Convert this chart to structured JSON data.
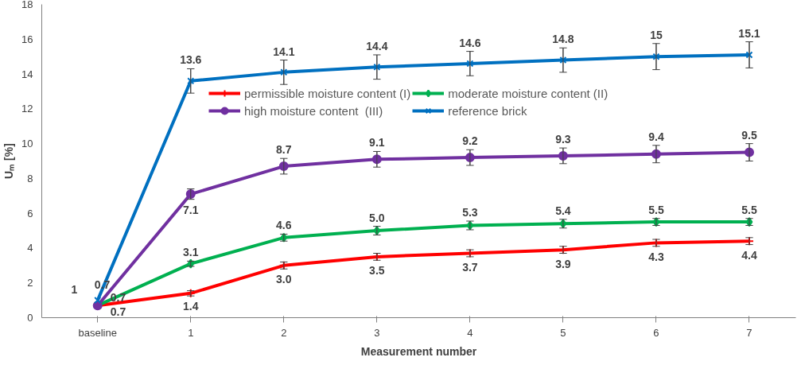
{
  "chart_data": {
    "type": "line",
    "xlabel": "Measurement number",
    "ylabel": "Uₘ [%]",
    "categories": [
      "baseline",
      "1",
      "2",
      "3",
      "4",
      "5",
      "6",
      "7"
    ],
    "ylim": [
      0,
      18
    ],
    "yticks": [
      0,
      2,
      4,
      6,
      8,
      10,
      12,
      14,
      16,
      18
    ],
    "grid": false,
    "legend": "top",
    "line_style": "solid",
    "series": [
      {
        "name": "permissible moisture content (I)",
        "color": "#ff0000",
        "marker": "cross",
        "values": [
          0.7,
          1.4,
          3.0,
          3.5,
          3.7,
          3.9,
          4.3,
          4.4
        ],
        "value_labels": [
          "0.7",
          "1.4",
          "3.0",
          "3.5",
          "3.7",
          "3.9",
          "4.3",
          "4.4"
        ],
        "errors": [
          null,
          0.15,
          0.2,
          0.2,
          0.2,
          0.2,
          0.2,
          0.2
        ]
      },
      {
        "name": "moderate moisture content (II)",
        "color": "#00b050",
        "marker": "diamond",
        "values": [
          0.7,
          3.1,
          4.6,
          5.0,
          5.3,
          5.4,
          5.5,
          5.5
        ],
        "value_labels": [
          "0.7",
          "3.1",
          "4.6",
          "5.0",
          "5.3",
          "5.4",
          "5.5",
          "5.5"
        ],
        "errors": [
          null,
          0.15,
          0.2,
          0.25,
          0.25,
          0.25,
          0.2,
          0.2
        ]
      },
      {
        "name": "high moisture content  (III)",
        "color": "#7030a0",
        "marker": "circle",
        "values": [
          0.7,
          7.1,
          8.7,
          9.1,
          9.2,
          9.3,
          9.4,
          9.5
        ],
        "value_labels": [
          "0.7",
          "7.1",
          "8.7",
          "9.1",
          "9.2",
          "9.3",
          "9.4",
          "9.5"
        ],
        "errors": [
          null,
          0.3,
          0.45,
          0.45,
          0.45,
          0.45,
          0.5,
          0.5
        ]
      },
      {
        "name": "reference brick",
        "color": "#0070c0",
        "marker": "x",
        "values": [
          1,
          13.6,
          14.1,
          14.4,
          14.6,
          14.8,
          15,
          15.1
        ],
        "value_labels": [
          "1",
          "13.6",
          "14.1",
          "14.4",
          "14.6",
          "14.8",
          "15",
          "15.1"
        ],
        "errors": [
          null,
          0.7,
          0.7,
          0.7,
          0.7,
          0.7,
          0.75,
          0.75
        ]
      }
    ]
  }
}
